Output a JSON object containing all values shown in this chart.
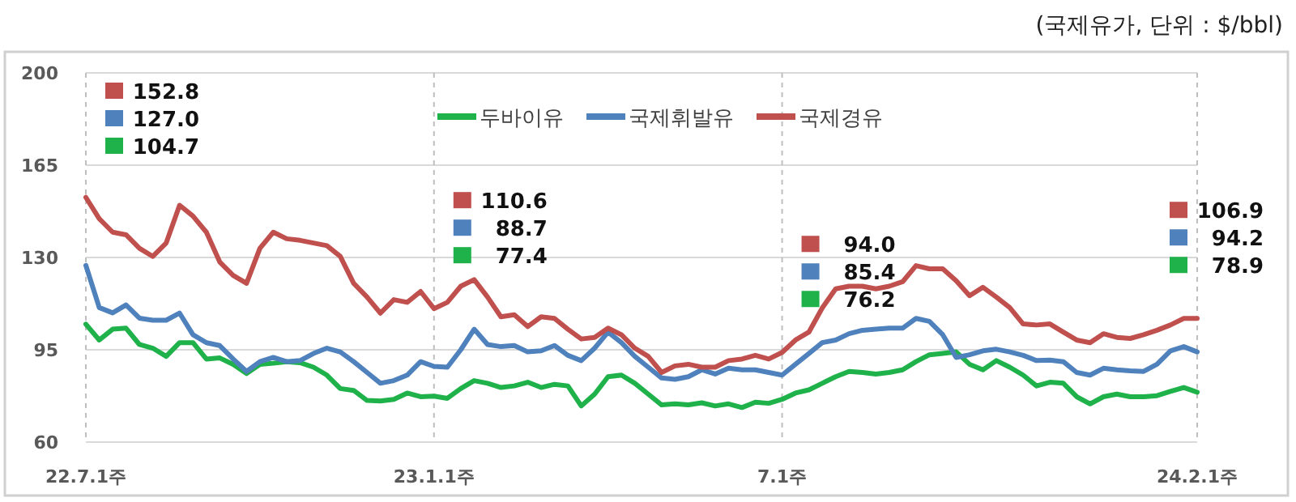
{
  "chart_data": {
    "type": "line",
    "categories": [
      "22.7.1주",
      null,
      null,
      null,
      null,
      null,
      null,
      null,
      null,
      null,
      null,
      null,
      null,
      null,
      null,
      null,
      null,
      null,
      null,
      null,
      null,
      null,
      null,
      null,
      null,
      null,
      "23.1.1주",
      null,
      null,
      null,
      null,
      null,
      null,
      null,
      null,
      null,
      null,
      null,
      null,
      null,
      null,
      null,
      null,
      null,
      null,
      null,
      null,
      null,
      null,
      null,
      null,
      null,
      "7.1주",
      null,
      null,
      null,
      null,
      null,
      null,
      null,
      null,
      null,
      null,
      null,
      null,
      null,
      null,
      null,
      null,
      null,
      null,
      null,
      null,
      null,
      null,
      null,
      null,
      null,
      null,
      null,
      null,
      null,
      null,
      "24.2.1주"
    ],
    "series": [
      {
        "name": "두바이유",
        "color": "#1fb14a",
        "values": [
          104.7,
          98.7,
          102.8,
          103.2,
          97.0,
          95.6,
          92.5,
          97.7,
          97.7,
          91.5,
          91.9,
          89.5,
          86.0,
          89.5,
          89.9,
          90.5,
          90.1,
          88.4,
          85.4,
          80.3,
          79.6,
          75.8,
          75.6,
          76.2,
          78.6,
          77.2,
          77.4,
          76.6,
          80.3,
          83.3,
          82.3,
          80.7,
          81.3,
          82.7,
          80.7,
          81.9,
          81.3,
          73.7,
          78.2,
          84.8,
          85.4,
          82.3,
          78.2,
          74.1,
          74.5,
          74.1,
          74.9,
          73.7,
          74.5,
          73.1,
          75.1,
          74.7,
          76.2,
          78.6,
          79.8,
          82.3,
          84.8,
          86.8,
          86.4,
          85.8,
          86.4,
          87.4,
          90.5,
          93.1,
          93.6,
          94.2,
          89.5,
          87.4,
          90.9,
          88.4,
          85.4,
          81.3,
          82.7,
          82.3,
          77.2,
          74.5,
          77.2,
          78.2,
          77.2,
          77.2,
          77.6,
          79.2,
          80.7,
          78.9
        ]
      },
      {
        "name": "국제휘발유",
        "color": "#4f81bd",
        "values": [
          127.0,
          111.0,
          109.0,
          112.0,
          107.0,
          106.2,
          106.2,
          108.9,
          100.7,
          97.7,
          96.6,
          91.5,
          86.8,
          90.5,
          92.1,
          90.5,
          90.9,
          93.6,
          95.6,
          94.2,
          90.5,
          86.4,
          82.3,
          83.3,
          85.4,
          90.5,
          88.7,
          88.4,
          95.0,
          102.8,
          97.0,
          96.2,
          96.6,
          94.2,
          94.6,
          96.6,
          92.9,
          90.9,
          95.6,
          101.7,
          97.7,
          92.5,
          88.4,
          84.3,
          83.8,
          84.8,
          87.4,
          85.8,
          88.0,
          87.4,
          87.4,
          86.4,
          85.4,
          89.5,
          93.6,
          97.7,
          98.7,
          101.1,
          102.4,
          102.8,
          103.2,
          103.2,
          106.9,
          105.8,
          100.7,
          92.1,
          93.1,
          94.6,
          95.2,
          94.2,
          92.9,
          90.9,
          91.1,
          90.5,
          86.4,
          85.4,
          88.0,
          87.4,
          87.0,
          86.8,
          89.5,
          94.6,
          96.2,
          94.2
        ]
      },
      {
        "name": "국제경유",
        "color": "#c0504d",
        "values": [
          152.8,
          144.7,
          139.6,
          138.6,
          133.5,
          130.4,
          135.5,
          149.8,
          145.7,
          139.6,
          128.3,
          123.2,
          120.2,
          133.5,
          139.6,
          137.1,
          136.5,
          135.5,
          134.5,
          130.4,
          120.2,
          115.0,
          108.9,
          114.0,
          113.0,
          117.1,
          110.6,
          113.0,
          119.1,
          121.6,
          115.0,
          107.5,
          108.3,
          103.8,
          107.5,
          106.9,
          102.8,
          99.1,
          99.7,
          103.2,
          100.7,
          95.6,
          92.5,
          86.4,
          88.9,
          89.5,
          88.4,
          88.4,
          90.9,
          91.5,
          92.9,
          91.5,
          94.0,
          98.7,
          101.7,
          110.9,
          118.1,
          119.1,
          119.1,
          118.1,
          119.1,
          120.8,
          126.9,
          125.7,
          125.7,
          121.2,
          115.5,
          118.7,
          115.0,
          111.0,
          104.8,
          104.4,
          104.8,
          101.7,
          98.7,
          97.7,
          101.1,
          99.7,
          99.3,
          100.7,
          102.4,
          104.4,
          106.9,
          106.9
        ]
      }
    ],
    "ylim": [
      60,
      200
    ],
    "yticks": [
      60,
      95,
      130,
      165,
      200
    ],
    "grid": true,
    "legend": "top",
    "annotations": [
      "(국제유가, 단위 : $/bbl)",
      "152.8",
      "127.0",
      "104.7",
      "110.6",
      "88.7",
      "77.4",
      "94.0",
      "85.4",
      "76.2",
      "106.9",
      "94.2",
      "78.9"
    ]
  }
}
